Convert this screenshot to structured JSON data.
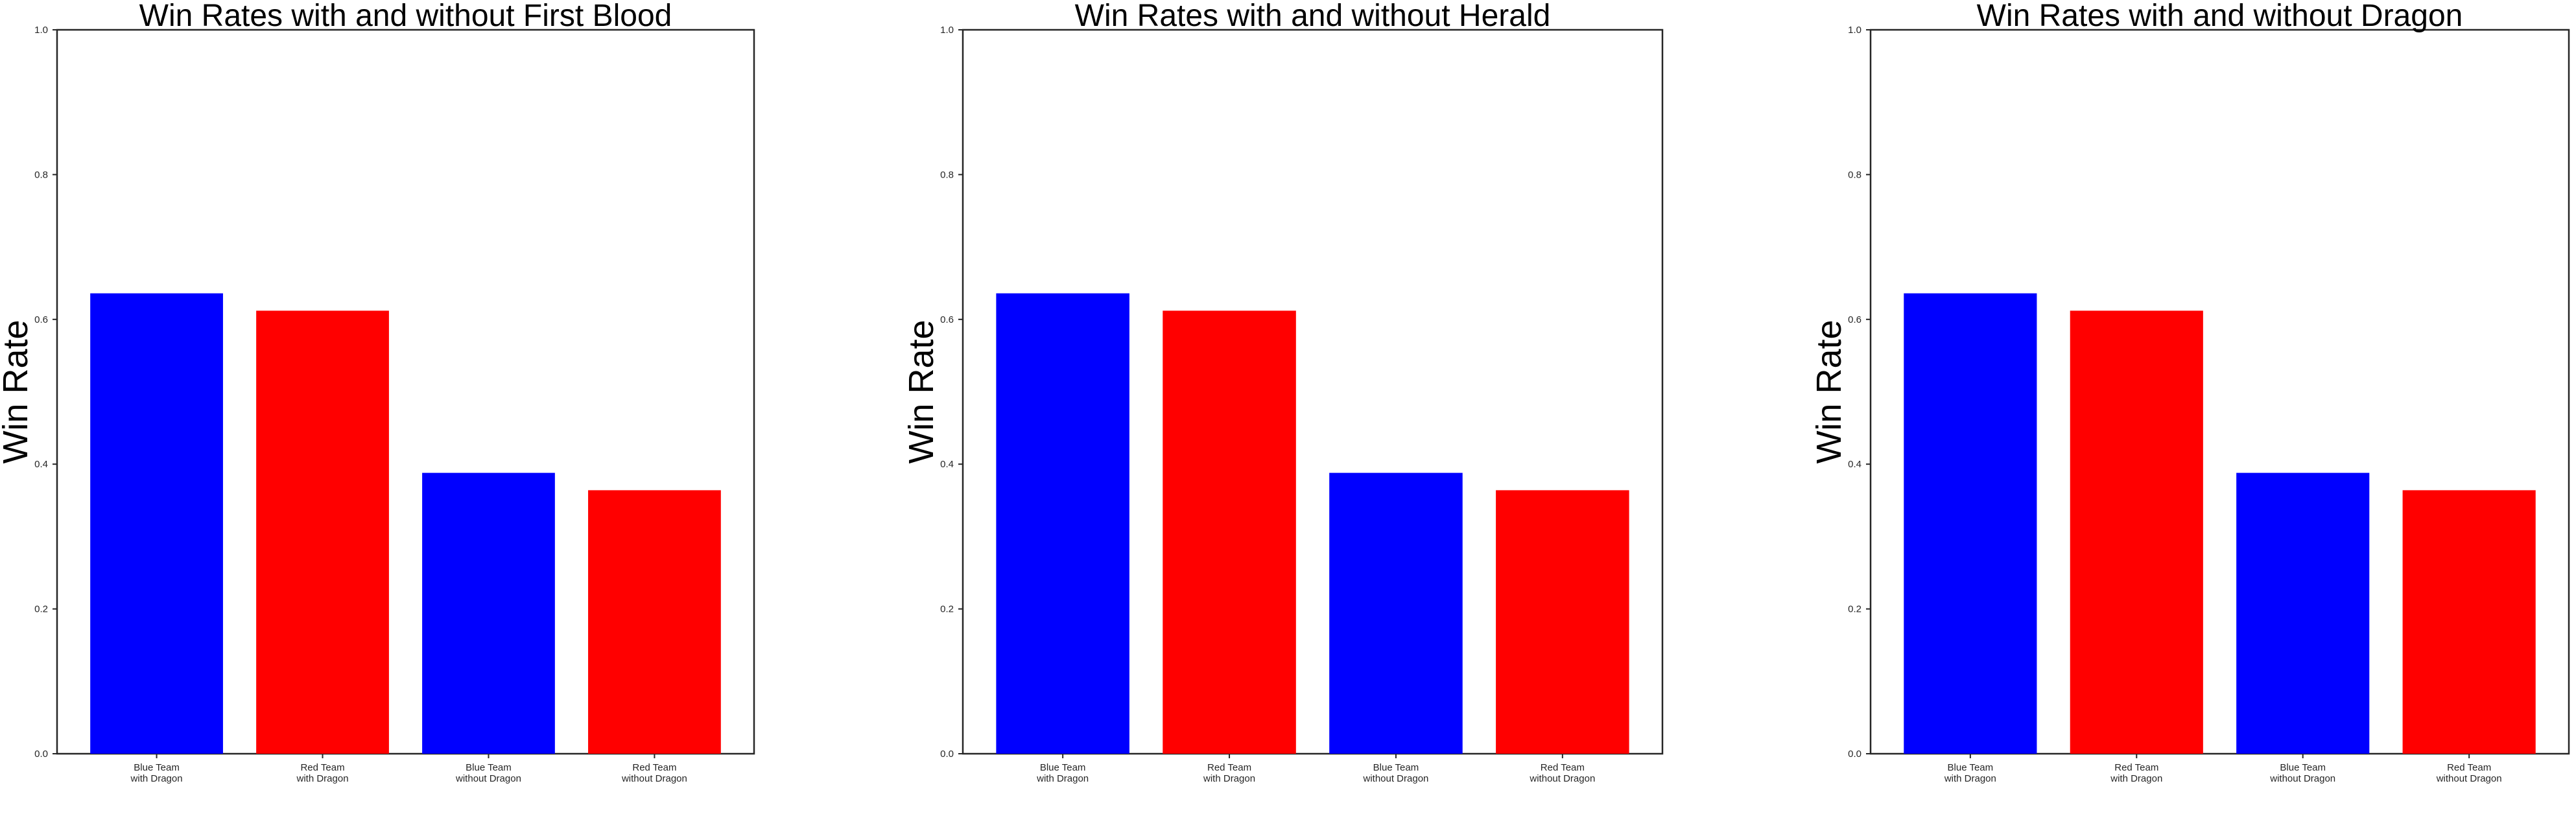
{
  "chart_data": [
    {
      "type": "bar",
      "title": "Win Rates with and without First Blood",
      "ylabel": "Win Rate",
      "xlabel": "",
      "ylim": [
        0,
        1.0
      ],
      "yticks": [
        "0.0",
        "0.2",
        "0.4",
        "0.6",
        "0.8",
        "1.0"
      ],
      "categories": [
        [
          "Blue Team",
          "with Dragon"
        ],
        [
          "Red Team",
          "with Dragon"
        ],
        [
          "Blue Team",
          "without Dragon"
        ],
        [
          "Red Team",
          "without Dragon"
        ]
      ],
      "values": [
        0.636,
        0.612,
        0.388,
        0.364
      ],
      "colors": [
        "#0000ff",
        "#ff0000",
        "#0000ff",
        "#ff0000"
      ],
      "grid": false
    },
    {
      "type": "bar",
      "title": "Win Rates with and without Herald",
      "ylabel": "Win Rate",
      "xlabel": "",
      "ylim": [
        0,
        1.0
      ],
      "yticks": [
        "0.0",
        "0.2",
        "0.4",
        "0.6",
        "0.8",
        "1.0"
      ],
      "categories": [
        [
          "Blue Team",
          "with Dragon"
        ],
        [
          "Red Team",
          "with Dragon"
        ],
        [
          "Blue Team",
          "without Dragon"
        ],
        [
          "Red Team",
          "without Dragon"
        ]
      ],
      "values": [
        0.636,
        0.612,
        0.388,
        0.364
      ],
      "colors": [
        "#0000ff",
        "#ff0000",
        "#0000ff",
        "#ff0000"
      ],
      "grid": false
    },
    {
      "type": "bar",
      "title": "Win Rates with and without Dragon",
      "ylabel": "Win Rate",
      "xlabel": "",
      "ylim": [
        0,
        1.0
      ],
      "yticks": [
        "0.0",
        "0.2",
        "0.4",
        "0.6",
        "0.8",
        "1.0"
      ],
      "categories": [
        [
          "Blue Team",
          "with Dragon"
        ],
        [
          "Red Team",
          "with Dragon"
        ],
        [
          "Blue Team",
          "without Dragon"
        ],
        [
          "Red Team",
          "without Dragon"
        ]
      ],
      "values": [
        0.636,
        0.612,
        0.388,
        0.364
      ],
      "colors": [
        "#0000ff",
        "#ff0000",
        "#0000ff",
        "#ff0000"
      ],
      "grid": false
    }
  ]
}
